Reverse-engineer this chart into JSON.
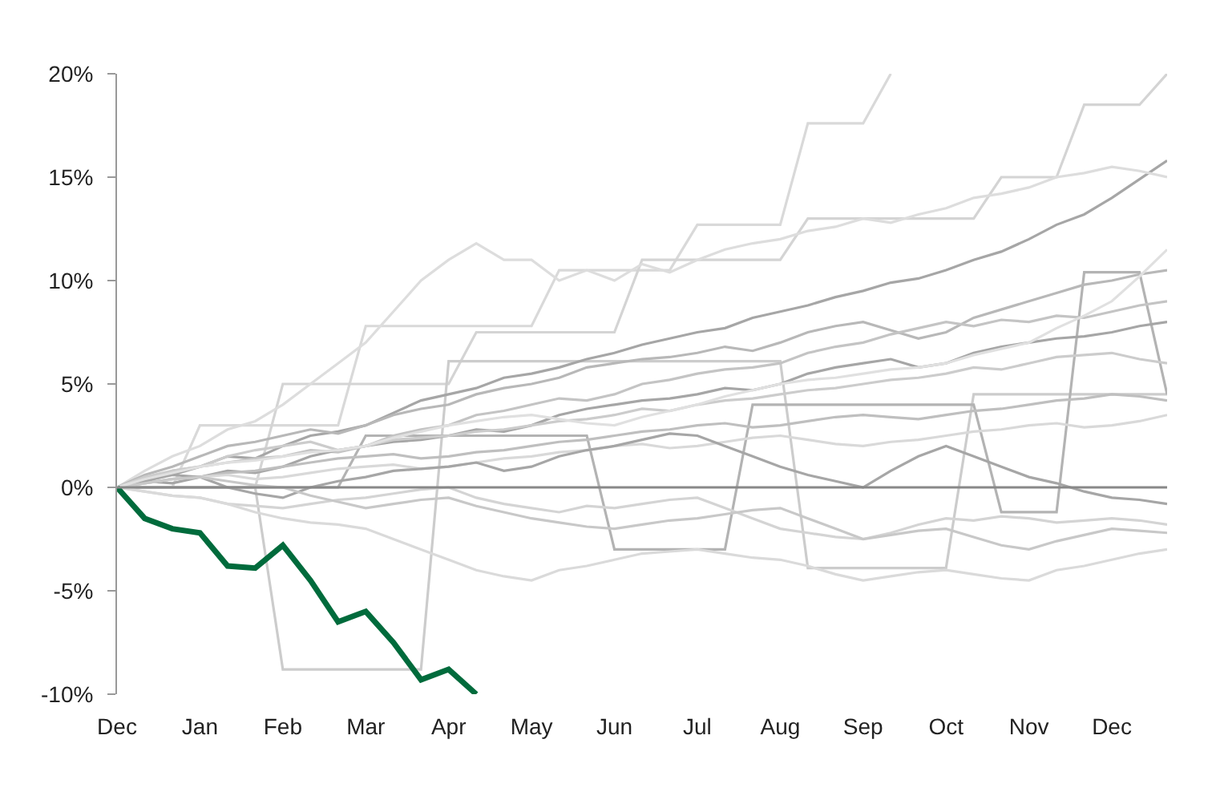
{
  "chart_data": {
    "type": "line",
    "categories": [
      "Dec",
      null,
      null,
      "Jan",
      null,
      null,
      "Feb",
      null,
      null,
      "Mar",
      null,
      null,
      "Apr",
      null,
      null,
      "May",
      null,
      null,
      "Jun",
      null,
      null,
      "Jul",
      null,
      null,
      "Aug",
      null,
      null,
      "Sep",
      null,
      null,
      "Oct",
      null,
      null,
      "Nov",
      null,
      null,
      "Dec",
      null,
      null
    ],
    "ylim": [
      -10,
      20
    ],
    "yticks": [
      {
        "value": -10,
        "label": "-10%"
      },
      {
        "value": -5,
        "label": "-5%"
      },
      {
        "value": 0,
        "label": "0%"
      },
      {
        "value": 5,
        "label": "5%"
      },
      {
        "value": 10,
        "label": "10%"
      },
      {
        "value": 15,
        "label": "15%"
      },
      {
        "value": 20,
        "label": "20%"
      }
    ],
    "ref_lines": [
      {
        "axis": "y",
        "value": 0,
        "color": "#888888"
      }
    ],
    "grid": false,
    "marker": "none",
    "line_style": "solid",
    "series": [
      {
        "color": "#d9d9d9",
        "values": [
          0,
          0,
          0,
          3,
          3,
          3,
          3,
          3,
          3,
          7.8,
          7.8,
          7.8,
          7.8,
          7.8,
          7.8,
          7.8,
          10.5,
          10.5,
          10.5,
          10.5,
          10.5,
          12.7,
          12.7,
          12.7,
          12.7,
          17.6,
          17.6,
          17.6,
          20,
          null,
          null,
          null,
          null,
          null,
          null,
          null,
          null,
          null,
          null
        ]
      },
      {
        "color": "#d4d4d4",
        "values": [
          0,
          0,
          0,
          0,
          0,
          0,
          5,
          5,
          5,
          5,
          5,
          5,
          5,
          7.5,
          7.5,
          7.5,
          7.5,
          7.5,
          7.5,
          11,
          11,
          11,
          11,
          11,
          11,
          13,
          13,
          13,
          13,
          13,
          13,
          13,
          15,
          15,
          15,
          18.5,
          18.5,
          18.5,
          20
        ]
      },
      {
        "color": "#cccccc",
        "values": [
          0,
          0,
          0,
          0,
          0,
          0,
          -8.8,
          -8.8,
          -8.8,
          -8.8,
          -8.8,
          -8.8,
          6.1,
          6.1,
          6.1,
          6.1,
          6.1,
          6.1,
          6.1,
          6.1,
          6.1,
          6.1,
          6.1,
          6.1,
          6.1,
          -3.9,
          -3.9,
          -3.9,
          -3.9,
          -3.9,
          -3.9,
          4.5,
          4.5,
          4.5,
          4.5,
          4.5,
          4.5,
          4.5,
          4.5
        ]
      },
      {
        "color": "#b3b3b3",
        "values": [
          0,
          0,
          0,
          0,
          0,
          0,
          0,
          0,
          0,
          2.5,
          2.5,
          2.5,
          2.5,
          2.5,
          2.5,
          2.5,
          2.5,
          2.5,
          -3,
          -3,
          -3,
          -3,
          -3,
          4,
          4,
          4,
          4,
          4,
          4,
          4,
          4,
          4,
          -1.2,
          -1.2,
          -1.2,
          10.4,
          10.4,
          10.4,
          4.5
        ]
      },
      {
        "color": "#a6a6a6",
        "values": [
          0,
          0.5,
          0.6,
          1,
          1.5,
          1.4,
          2,
          2.5,
          2.7,
          3,
          3.6,
          4.2,
          4.5,
          4.8,
          5.3,
          5.5,
          5.8,
          6.2,
          6.5,
          6.9,
          7.2,
          7.5,
          7.7,
          8.2,
          8.5,
          8.8,
          9.2,
          9.5,
          9.9,
          10.1,
          10.5,
          11,
          11.4,
          12,
          12.7,
          13.2,
          14,
          14.9,
          15.8
        ]
      },
      {
        "color": "#dddddd",
        "values": [
          0,
          0.8,
          1.5,
          2,
          2.8,
          3.2,
          4,
          5,
          6,
          7,
          8.5,
          10,
          11,
          11.8,
          11,
          11,
          10,
          10.5,
          10,
          10.8,
          10.4,
          11,
          11.5,
          11.8,
          12,
          12.4,
          12.6,
          13,
          12.8,
          13.2,
          13.5,
          14,
          14.2,
          14.5,
          15,
          15.2,
          15.5,
          15.3,
          15
        ]
      },
      {
        "color": "#b8b8b8",
        "values": [
          0,
          0.6,
          1,
          1.5,
          2,
          2.2,
          2.5,
          2.8,
          2.6,
          3,
          3.5,
          3.8,
          4,
          4.5,
          4.8,
          5,
          5.3,
          5.8,
          6,
          6.2,
          6.3,
          6.5,
          6.8,
          6.6,
          7,
          7.5,
          7.8,
          8,
          7.6,
          7.2,
          7.5,
          8.2,
          8.6,
          9,
          9.4,
          9.8,
          10,
          10.3,
          10.5
        ]
      },
      {
        "color": "#c4c4c4",
        "values": [
          0,
          0.3,
          0.8,
          1,
          1.2,
          1.4,
          1.5,
          1.8,
          1.7,
          2,
          2.5,
          2.8,
          3,
          3.5,
          3.7,
          4,
          4.3,
          4.2,
          4.5,
          5,
          5.2,
          5.5,
          5.7,
          5.8,
          6,
          6.5,
          6.8,
          7,
          7.4,
          7.7,
          8,
          7.8,
          8.1,
          8,
          8.3,
          8.2,
          8.5,
          8.8,
          9
        ]
      },
      {
        "color": "#a6a6a6",
        "values": [
          0,
          0.3,
          0.2,
          0.5,
          0.8,
          0.7,
          1,
          1.5,
          1.8,
          2,
          2.2,
          2.3,
          2.5,
          2.8,
          2.7,
          3,
          3.5,
          3.8,
          4,
          4.2,
          4.3,
          4.5,
          4.8,
          4.7,
          5,
          5.5,
          5.8,
          6,
          6.2,
          5.8,
          6,
          6.5,
          6.8,
          7,
          7.2,
          7.3,
          7.5,
          7.8,
          8
        ]
      },
      {
        "color": "#cccccc",
        "values": [
          0,
          0.5,
          0.8,
          1,
          1.5,
          1.8,
          2,
          2.2,
          1.8,
          2,
          2.3,
          2.4,
          2.5,
          2.7,
          2.8,
          3,
          3.2,
          3.3,
          3.5,
          3.8,
          3.7,
          4,
          4.2,
          4.3,
          4.5,
          4.7,
          4.8,
          5,
          5.2,
          5.3,
          5.5,
          5.8,
          5.7,
          6,
          6.3,
          6.4,
          6.5,
          6.2,
          6
        ]
      },
      {
        "color": "#bfbfbf",
        "values": [
          0,
          0.2,
          0.4,
          0.5,
          0.7,
          0.8,
          1,
          1.2,
          1.4,
          1.5,
          1.6,
          1.4,
          1.5,
          1.7,
          1.8,
          2,
          2.2,
          2.3,
          2.5,
          2.7,
          2.8,
          3,
          3.1,
          2.9,
          3,
          3.2,
          3.4,
          3.5,
          3.4,
          3.3,
          3.5,
          3.7,
          3.8,
          4,
          4.2,
          4.3,
          4.5,
          4.4,
          4.2
        ]
      },
      {
        "color": "#d9d9d9",
        "values": [
          0,
          0.2,
          0.4,
          0.5,
          0.6,
          0.4,
          0.5,
          0.7,
          0.9,
          1,
          1.1,
          0.9,
          1,
          1.2,
          1.4,
          1.5,
          1.7,
          1.8,
          2,
          2.1,
          1.9,
          2,
          2.2,
          2.4,
          2.5,
          2.3,
          2.1,
          2,
          2.2,
          2.3,
          2.5,
          2.7,
          2.8,
          3,
          3.1,
          2.9,
          3,
          3.2,
          3.5
        ]
      },
      {
        "color": "#a6a6a6",
        "values": [
          0,
          0.3,
          0.6,
          0.5,
          0,
          -0.3,
          -0.5,
          0,
          0.3,
          0.5,
          0.8,
          0.9,
          1,
          1.2,
          0.8,
          1,
          1.5,
          1.8,
          2,
          2.3,
          2.6,
          2.5,
          2,
          1.5,
          1,
          0.6,
          0.3,
          0,
          0.8,
          1.5,
          2,
          1.5,
          1,
          0.5,
          0.2,
          -0.2,
          -0.5,
          -0.6,
          -0.8
        ]
      },
      {
        "color": "#d4d4d4",
        "values": [
          0,
          -0.2,
          -0.4,
          -0.5,
          -0.8,
          -0.9,
          -1,
          -0.8,
          -0.6,
          -0.5,
          -0.3,
          -0.1,
          0,
          -0.5,
          -0.8,
          -1,
          -1.2,
          -0.9,
          -1,
          -0.8,
          -0.6,
          -0.5,
          -1,
          -1.5,
          -2,
          -2.2,
          -2.4,
          -2.5,
          -2.2,
          -1.8,
          -1.5,
          -1.6,
          -1.4,
          -1.5,
          -1.7,
          -1.6,
          -1.5,
          -1.6,
          -1.8
        ]
      },
      {
        "color": "#dadada",
        "values": [
          0,
          -0.2,
          -0.4,
          -0.5,
          -0.8,
          -1.2,
          -1.5,
          -1.7,
          -1.8,
          -2,
          -2.5,
          -3,
          -3.5,
          -4,
          -4.3,
          -4.5,
          -4,
          -3.8,
          -3.5,
          -3.2,
          -3.1,
          -3,
          -3.2,
          -3.4,
          -3.5,
          -3.8,
          -4.2,
          -4.5,
          -4.3,
          -4.1,
          -4,
          -4.2,
          -4.4,
          -4.5,
          -4,
          -3.8,
          -3.5,
          -3.2,
          -3
        ]
      },
      {
        "color": "#c8c8c8",
        "values": [
          0,
          0.2,
          0.4,
          0.5,
          0.3,
          0.1,
          0,
          -0.4,
          -0.7,
          -1,
          -0.8,
          -0.6,
          -0.5,
          -0.9,
          -1.2,
          -1.5,
          -1.7,
          -1.9,
          -2,
          -1.8,
          -1.6,
          -1.5,
          -1.3,
          -1.1,
          -1,
          -1.5,
          -2,
          -2.5,
          -2.3,
          -2.1,
          -2,
          -2.4,
          -2.8,
          -3,
          -2.6,
          -2.3,
          -2,
          -2.1,
          -2.2
        ]
      },
      {
        "color": "#e0e0e0",
        "values": [
          0,
          0.4,
          0.7,
          1,
          1.2,
          1.3,
          1.5,
          1.7,
          1.8,
          2,
          2.4,
          2.7,
          3,
          3.2,
          3.4,
          3.5,
          3.3,
          3.1,
          3,
          3.4,
          3.7,
          4,
          4.4,
          4.7,
          5,
          5.2,
          5.3,
          5.5,
          5.7,
          5.8,
          6,
          6.4,
          6.7,
          7,
          7.7,
          8.3,
          9,
          10.2,
          11.5
        ]
      },
      {
        "color": "#006b3c",
        "values": [
          0,
          -1.5,
          -2.0,
          -2.2,
          -3.8,
          -3.9,
          -2.8,
          -4.5,
          -6.5,
          -6.0,
          -7.5,
          -9.3,
          -8.8,
          -10.0,
          null,
          null,
          null,
          null,
          null,
          null,
          null,
          null,
          null,
          null,
          null,
          null,
          null,
          null,
          null,
          null,
          null,
          null,
          null,
          null,
          null,
          null,
          null,
          null,
          null
        ]
      }
    ]
  }
}
